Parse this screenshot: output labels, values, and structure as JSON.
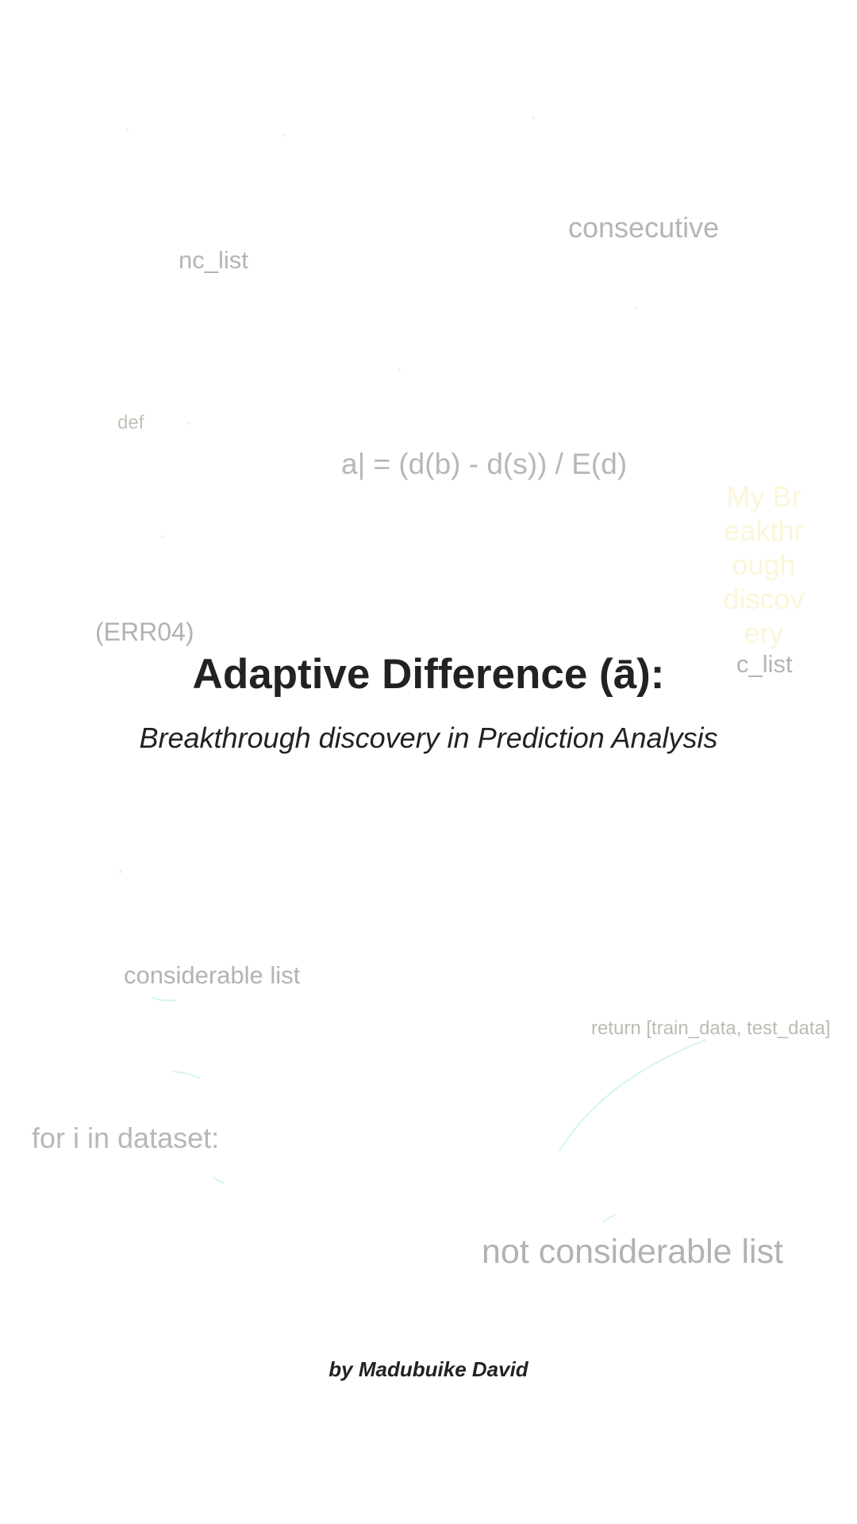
{
  "background_words": {
    "consecutive": "consecutive",
    "nc_list": "nc_list",
    "def": "def",
    "formula": "a| = (d(b) - d(s)) / E(d)",
    "err": "(ERR04)",
    "c_list": "c_list",
    "considerable_list": "considerable list",
    "return_stmt": "return [train_data, test_data]",
    "for_loop": "for i in dataset:",
    "not_considerable_list": "not considerable list",
    "faint_vertical": "My Breakthrough discovery"
  },
  "cover": {
    "title": "Adaptive Difference (ā):",
    "subtitle": "Breakthrough discovery in Prediction Analysis",
    "author": "by Madubuike David"
  },
  "colors": {
    "background": "#ffffff",
    "title_text": "#222222",
    "faint_text": "#b3b4b8",
    "faint_yellow": "#fbf6d8",
    "teal_stroke": "#c8f2ea"
  }
}
